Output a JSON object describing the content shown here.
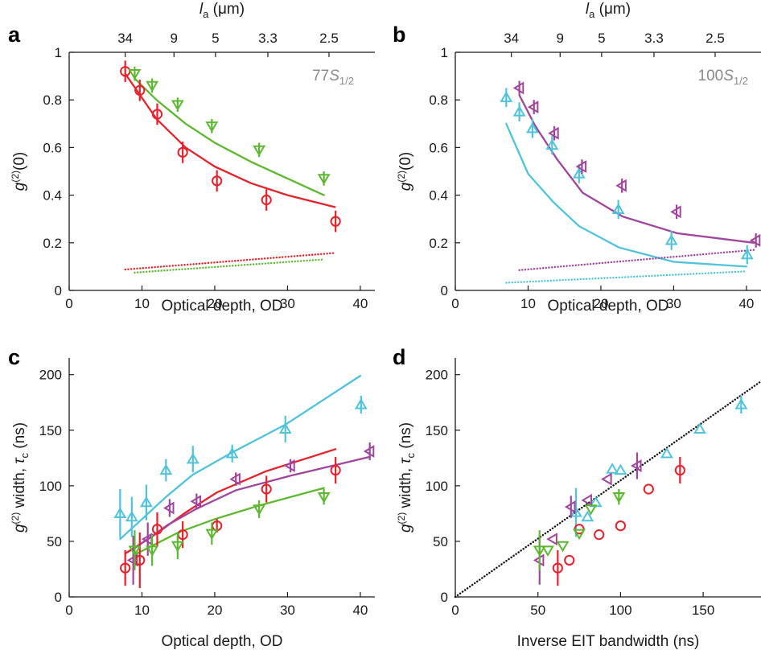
{
  "colors": {
    "red": "#e8202a",
    "green": "#5cb82e",
    "purple": "#a0449e",
    "cyan": "#4fc3dc",
    "black": "#111111",
    "axis": "#1a1a1a",
    "annotation": "#8a8a8a"
  },
  "chart_data": [
    {
      "panel": "a",
      "type": "scatter",
      "annotation": "77S1/2",
      "xlabel": "Optical depth, OD",
      "ylabel": "g(2)(0)",
      "top_axis_label": "la (μm)",
      "top_ticks": [
        "34",
        "9",
        "5",
        "3.3",
        "2.5"
      ],
      "xlim": [
        0,
        42
      ],
      "ylim": [
        0,
        1
      ],
      "xticks": [
        0,
        10,
        20,
        30,
        40
      ],
      "yticks": [
        0,
        0.2,
        0.4,
        0.6,
        0.8,
        1
      ],
      "ytick_labels": [
        "0",
        "0.2",
        "0.4",
        "0.6",
        "0.8",
        "1"
      ],
      "grid": false,
      "series": [
        {
          "color": "red",
          "marker": "circle",
          "x": [
            7.7,
            9.7,
            12.1,
            15.6,
            20.3,
            27.1,
            36.6
          ],
          "y": [
            0.92,
            0.84,
            0.74,
            0.58,
            0.46,
            0.38,
            0.29
          ],
          "err": [
            0.045,
            0.045,
            0.045,
            0.045,
            0.045,
            0.045,
            0.045
          ]
        },
        {
          "color": "green",
          "marker": "triangle-down",
          "x": [
            9.0,
            11.4,
            14.9,
            19.6,
            26.1,
            35.0
          ],
          "y": [
            0.91,
            0.86,
            0.78,
            0.69,
            0.59,
            0.47
          ],
          "err": [
            0.03,
            0.03,
            0.03,
            0.03,
            0.03,
            0.03
          ]
        }
      ],
      "lines": [
        {
          "color": "red",
          "style": "solid",
          "x": [
            7.7,
            12,
            16,
            20,
            25,
            30,
            36.5
          ],
          "y": [
            0.91,
            0.72,
            0.6,
            0.52,
            0.45,
            0.4,
            0.35
          ]
        },
        {
          "color": "green",
          "style": "solid",
          "x": [
            9,
            12,
            16,
            20,
            25,
            30,
            35
          ],
          "y": [
            0.89,
            0.8,
            0.7,
            0.62,
            0.54,
            0.47,
            0.4
          ]
        },
        {
          "color": "red",
          "style": "dotted",
          "x": [
            7.7,
            36.5
          ],
          "y": [
            0.088,
            0.157
          ]
        },
        {
          "color": "green",
          "style": "dotted",
          "x": [
            9,
            35
          ],
          "y": [
            0.075,
            0.13
          ]
        }
      ]
    },
    {
      "panel": "b",
      "type": "scatter",
      "annotation": "100S1/2",
      "xlabel": "Optical depth, OD",
      "ylabel": "g(2)(0)",
      "top_axis_label": "la (μm)",
      "top_ticks": [
        "34",
        "9",
        "5",
        "3.3",
        "2.5"
      ],
      "xlim": [
        0,
        42
      ],
      "ylim": [
        0,
        1
      ],
      "xticks": [
        0,
        10,
        20,
        30,
        40
      ],
      "yticks": [
        0,
        0.2,
        0.4,
        0.6,
        0.8,
        1
      ],
      "ytick_labels": [
        "0",
        "0.2",
        "0.4",
        "0.6",
        "0.8",
        "1"
      ],
      "grid": false,
      "series": [
        {
          "color": "cyan",
          "marker": "triangle-up",
          "x": [
            7.0,
            8.8,
            10.6,
            13.3,
            17.0,
            22.4,
            29.7,
            40.1
          ],
          "y": [
            0.81,
            0.75,
            0.68,
            0.61,
            0.49,
            0.34,
            0.21,
            0.15
          ],
          "err": [
            0.04,
            0.04,
            0.04,
            0.04,
            0.04,
            0.04,
            0.04,
            0.04
          ]
        },
        {
          "color": "purple",
          "marker": "triangle-left",
          "x": [
            8.8,
            10.8,
            13.6,
            17.4,
            22.9,
            30.4,
            41.3
          ],
          "y": [
            0.85,
            0.77,
            0.66,
            0.52,
            0.44,
            0.33,
            0.21
          ],
          "err": [
            0.03,
            0.03,
            0.03,
            0.03,
            0.03,
            0.03,
            0.03
          ]
        }
      ],
      "lines": [
        {
          "color": "purple",
          "style": "solid",
          "x": [
            8.8,
            11,
            14,
            17.5,
            23,
            30.5,
            41
          ],
          "y": [
            0.82,
            0.69,
            0.55,
            0.41,
            0.31,
            0.24,
            0.2
          ]
        },
        {
          "color": "cyan",
          "style": "solid",
          "x": [
            7,
            10,
            13.5,
            17,
            22.5,
            30,
            40
          ],
          "y": [
            0.7,
            0.49,
            0.37,
            0.27,
            0.18,
            0.12,
            0.1
          ]
        },
        {
          "color": "purple",
          "style": "dotted",
          "x": [
            8.8,
            41
          ],
          "y": [
            0.085,
            0.17
          ]
        },
        {
          "color": "cyan",
          "style": "dotted",
          "x": [
            7,
            40
          ],
          "y": [
            0.032,
            0.08
          ]
        }
      ]
    },
    {
      "panel": "c",
      "type": "scatter",
      "xlabel": "Optical depth, OD",
      "ylabel": "g(2) width, τc (ns)",
      "xlim": [
        0,
        42
      ],
      "ylim": [
        0,
        215
      ],
      "xticks": [
        0,
        10,
        20,
        30,
        40
      ],
      "yticks": [
        0,
        50,
        100,
        150,
        200
      ],
      "ytick_labels": [
        "0",
        "50",
        "100",
        "150",
        "200"
      ],
      "grid": false,
      "series": [
        {
          "color": "cyan",
          "marker": "triangle-up",
          "x": [
            7.0,
            8.6,
            10.6,
            13.3,
            17.0,
            22.4,
            29.7,
            40.1
          ],
          "y": [
            75,
            72,
            85,
            114,
            124,
            129,
            151,
            173
          ],
          "err": [
            22,
            18,
            16,
            10,
            12,
            8,
            12,
            8
          ]
        },
        {
          "color": "purple",
          "marker": "triangle-left",
          "x": [
            8.8,
            10.8,
            13.8,
            17.5,
            22.9,
            30.4,
            41.3
          ],
          "y": [
            33,
            52,
            80,
            86,
            106,
            118,
            131
          ],
          "err": [
            22,
            15,
            8,
            7,
            6,
            6,
            8
          ]
        },
        {
          "color": "red",
          "marker": "circle",
          "x": [
            7.7,
            9.7,
            12.1,
            15.6,
            20.3,
            27.1,
            36.6
          ],
          "y": [
            26,
            33,
            61,
            56,
            64,
            97,
            114
          ],
          "err": [
            16,
            25,
            15,
            12,
            6,
            12,
            12
          ]
        },
        {
          "color": "green",
          "marker": "triangle-down",
          "x": [
            9.0,
            11.4,
            14.9,
            19.6,
            26.1,
            35.0
          ],
          "y": [
            42,
            42,
            46,
            57,
            79,
            90
          ],
          "err": [
            18,
            14,
            12,
            10,
            8,
            7
          ]
        }
      ],
      "lines": [
        {
          "color": "cyan",
          "style": "solid",
          "x": [
            7,
            10,
            13.3,
            17,
            22.4,
            29.7,
            40
          ],
          "y": [
            52,
            70,
            90,
            110,
            130,
            155,
            199
          ]
        },
        {
          "color": "red",
          "style": "solid",
          "x": [
            7.7,
            12,
            16,
            20.3,
            27,
            36.6
          ],
          "y": [
            39,
            57,
            76,
            94,
            113,
            133
          ]
        },
        {
          "color": "purple",
          "style": "solid",
          "x": [
            8.8,
            13.6,
            17.4,
            22.9,
            30.4,
            41.3
          ],
          "y": [
            43,
            65,
            79,
            96,
            109,
            126
          ]
        },
        {
          "color": "green",
          "style": "solid",
          "x": [
            9,
            12,
            15,
            20,
            26,
            35
          ],
          "y": [
            38,
            48,
            58,
            70,
            82,
            98
          ]
        }
      ]
    },
    {
      "panel": "d",
      "type": "scatter",
      "xlabel": "Inverse EIT bandwidth (ns)",
      "ylabel": "g(2) width, τc (ns)",
      "xlim": [
        0,
        185
      ],
      "ylim": [
        0,
        215
      ],
      "xticks": [
        0,
        50,
        100,
        150
      ],
      "yticks": [
        0,
        50,
        100,
        150,
        200
      ],
      "ytick_labels": [
        "0",
        "50",
        "100",
        "150",
        "200"
      ],
      "grid": false,
      "series": [
        {
          "color": "cyan",
          "marker": "triangle-up",
          "x": [
            73,
            80,
            85,
            95,
            100,
            128,
            148,
            173
          ],
          "y": [
            76,
            72,
            85,
            115,
            114,
            129,
            151,
            173
          ],
          "err": [
            22,
            0,
            0,
            0,
            0,
            0,
            0,
            8
          ]
        },
        {
          "color": "purple",
          "marker": "triangle-left",
          "x": [
            51,
            59,
            70,
            80,
            92,
            110
          ],
          "y": [
            33,
            52,
            81,
            87,
            106,
            118
          ],
          "err": [
            22,
            0,
            10,
            0,
            0,
            12
          ]
        },
        {
          "color": "red",
          "marker": "circle",
          "x": [
            62,
            69,
            75,
            87,
            100,
            117,
            136
          ],
          "y": [
            26,
            33,
            61,
            56,
            64,
            97,
            114
          ],
          "err": [
            16,
            0,
            0,
            0,
            0,
            0,
            12
          ]
        },
        {
          "color": "green",
          "marker": "triangle-down",
          "x": [
            51,
            56,
            65,
            75,
            82,
            99
          ],
          "y": [
            42,
            42,
            46,
            57,
            79,
            90
          ],
          "err": [
            18,
            0,
            0,
            0,
            0,
            7
          ]
        }
      ],
      "lines": [
        {
          "color": "black",
          "style": "dotted",
          "x": [
            0,
            185
          ],
          "y": [
            0,
            194
          ]
        }
      ]
    }
  ]
}
